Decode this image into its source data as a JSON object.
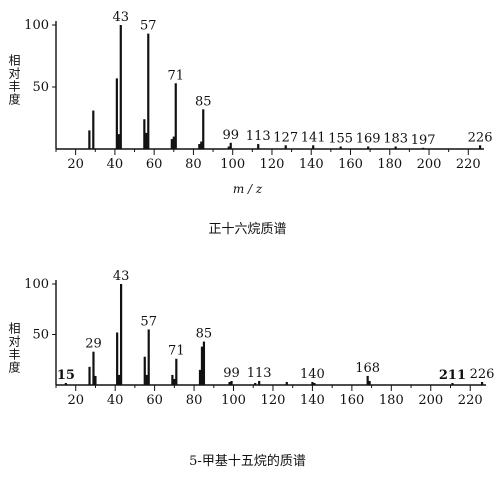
{
  "chart_data": [
    {
      "type": "bar",
      "title": "正十六烷质谱",
      "xlabel": "m / z",
      "ylabel": "相对丰度",
      "xlim": [
        10,
        228
      ],
      "ylim": [
        0,
        100
      ],
      "xticks": [
        20,
        40,
        60,
        80,
        100,
        120,
        140,
        160,
        180,
        200,
        220
      ],
      "yticks": [
        50,
        100
      ],
      "peaks": [
        {
          "x": 27,
          "y": 15
        },
        {
          "x": 29,
          "y": 31
        },
        {
          "x": 41,
          "y": 57
        },
        {
          "x": 42,
          "y": 12
        },
        {
          "x": 43,
          "y": 100
        },
        {
          "x": 55,
          "y": 24
        },
        {
          "x": 56,
          "y": 13
        },
        {
          "x": 57,
          "y": 93
        },
        {
          "x": 69,
          "y": 8
        },
        {
          "x": 70,
          "y": 10
        },
        {
          "x": 71,
          "y": 53
        },
        {
          "x": 83,
          "y": 4
        },
        {
          "x": 84,
          "y": 6
        },
        {
          "x": 85,
          "y": 32
        },
        {
          "x": 98,
          "y": 2
        },
        {
          "x": 99,
          "y": 5
        },
        {
          "x": 113,
          "y": 4
        },
        {
          "x": 127,
          "y": 3
        },
        {
          "x": 141,
          "y": 3
        },
        {
          "x": 155,
          "y": 2
        },
        {
          "x": 169,
          "y": 2
        },
        {
          "x": 183,
          "y": 2
        },
        {
          "x": 197,
          "y": 1
        },
        {
          "x": 226,
          "y": 3
        }
      ],
      "labels": [
        {
          "text": "43",
          "x": 43,
          "y": 100
        },
        {
          "text": "57",
          "x": 57,
          "y": 93
        },
        {
          "text": "71",
          "x": 71,
          "y": 53
        },
        {
          "text": "85",
          "x": 85,
          "y": 32
        },
        {
          "text": "99",
          "x": 99,
          "y": 5
        },
        {
          "text": "113",
          "x": 113,
          "y": 4
        },
        {
          "text": "127",
          "x": 127,
          "y": 3
        },
        {
          "text": "141",
          "x": 141,
          "y": 3
        },
        {
          "text": "155",
          "x": 155,
          "y": 2
        },
        {
          "text": "169",
          "x": 169,
          "y": 2
        },
        {
          "text": "183",
          "x": 183,
          "y": 2
        },
        {
          "text": "197",
          "x": 197,
          "y": 1
        },
        {
          "text": "226",
          "x": 226,
          "y": 3
        }
      ]
    },
    {
      "type": "bar",
      "title": "5-甲基十五烷的质谱",
      "xlabel": "",
      "ylabel": "相对丰度",
      "xlim": [
        10,
        228
      ],
      "ylim": [
        0,
        100
      ],
      "xticks": [
        20,
        40,
        60,
        80,
        100,
        120,
        140,
        160,
        180,
        200,
        220
      ],
      "yticks": [
        50,
        100
      ],
      "peaks": [
        {
          "x": 15,
          "y": 2
        },
        {
          "x": 27,
          "y": 18
        },
        {
          "x": 29,
          "y": 33
        },
        {
          "x": 30,
          "y": 9
        },
        {
          "x": 41,
          "y": 52
        },
        {
          "x": 42,
          "y": 10
        },
        {
          "x": 43,
          "y": 100
        },
        {
          "x": 55,
          "y": 28
        },
        {
          "x": 56,
          "y": 10
        },
        {
          "x": 57,
          "y": 55
        },
        {
          "x": 69,
          "y": 10
        },
        {
          "x": 70,
          "y": 6
        },
        {
          "x": 71,
          "y": 26
        },
        {
          "x": 83,
          "y": 15
        },
        {
          "x": 84,
          "y": 38
        },
        {
          "x": 85,
          "y": 43
        },
        {
          "x": 98,
          "y": 3
        },
        {
          "x": 99,
          "y": 4
        },
        {
          "x": 111,
          "y": 2
        },
        {
          "x": 113,
          "y": 4
        },
        {
          "x": 127,
          "y": 3
        },
        {
          "x": 140,
          "y": 3
        },
        {
          "x": 141,
          "y": 2
        },
        {
          "x": 168,
          "y": 9
        },
        {
          "x": 169,
          "y": 4
        },
        {
          "x": 211,
          "y": 2
        },
        {
          "x": 226,
          "y": 3
        }
      ],
      "labels": [
        {
          "text": "15",
          "x": 15,
          "y": 2,
          "bold": true
        },
        {
          "text": "29",
          "x": 29,
          "y": 33
        },
        {
          "text": "43",
          "x": 43,
          "y": 100
        },
        {
          "text": "57",
          "x": 57,
          "y": 55
        },
        {
          "text": "71",
          "x": 71,
          "y": 26
        },
        {
          "text": "85",
          "x": 85,
          "y": 43
        },
        {
          "text": "99",
          "x": 99,
          "y": 4
        },
        {
          "text": "113",
          "x": 113,
          "y": 4
        },
        {
          "text": "140",
          "x": 140,
          "y": 3
        },
        {
          "text": "168",
          "x": 168,
          "y": 9
        },
        {
          "text": "211",
          "x": 211,
          "y": 2,
          "bold": true
        },
        {
          "text": "226",
          "x": 226,
          "y": 3
        }
      ]
    }
  ]
}
